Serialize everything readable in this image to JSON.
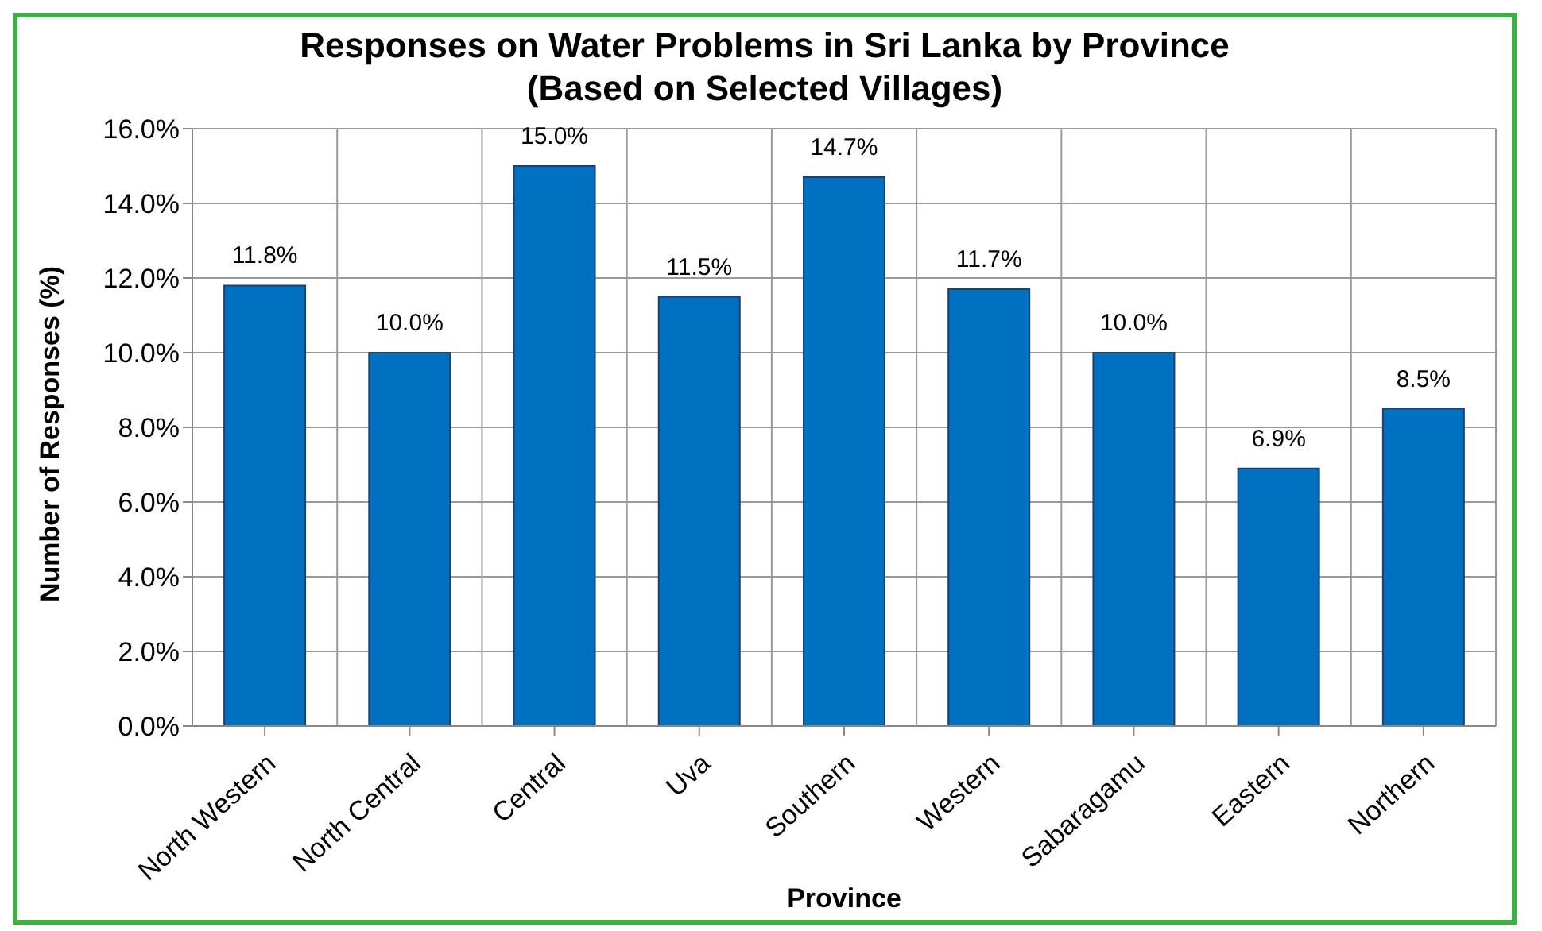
{
  "chart_data": {
    "type": "bar",
    "title": "Responses on Water Problems in Sri Lanka by Province",
    "subtitle": "(Based on Selected Villages)",
    "xlabel": "Province",
    "ylabel": "Number of Responses (%)",
    "categories": [
      "North Western",
      "North Central",
      "Central",
      "Uva",
      "Southern",
      "Western",
      "Sabaragamu",
      "Eastern",
      "Northern"
    ],
    "values": [
      11.8,
      10.0,
      15.0,
      11.5,
      14.7,
      11.7,
      10.0,
      6.9,
      8.5
    ],
    "value_labels": [
      "11.8%",
      "10.0%",
      "15.0%",
      "11.5%",
      "14.7%",
      "11.7%",
      "10.0%",
      "6.9%",
      "8.5%"
    ],
    "color": "#0070c0",
    "ylim": [
      0,
      16
    ],
    "yticks": [
      {
        "value": 0,
        "label": "0.0%"
      },
      {
        "value": 2,
        "label": "2.0%"
      },
      {
        "value": 4,
        "label": "4.0%"
      },
      {
        "value": 6,
        "label": "6.0%"
      },
      {
        "value": 8,
        "label": "8.0%"
      },
      {
        "value": 10,
        "label": "10.0%"
      },
      {
        "value": 12,
        "label": "12.0%"
      },
      {
        "value": 14,
        "label": "14.0%"
      },
      {
        "value": 16,
        "label": "16.0%"
      }
    ],
    "grid": true
  }
}
